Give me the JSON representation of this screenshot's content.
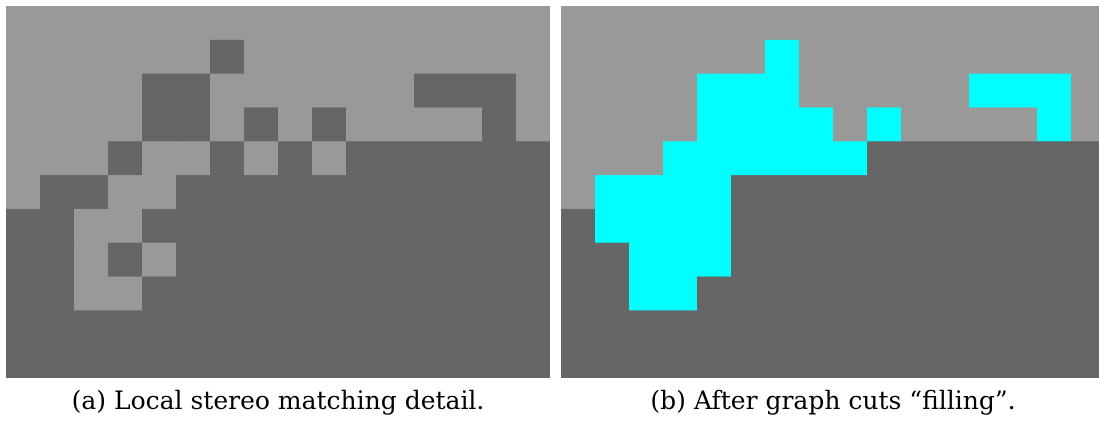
{
  "colors": {
    "light": "#999999",
    "dark": "#666666",
    "fill": "#00ffff"
  },
  "panels": [
    {
      "caption": "(a) Local stereo matching detail.",
      "grid": [
        "LLLLLLLLLLLLLLLL",
        "LLLLLLDLLLLLLLLL",
        "LLLLDDLLLLLLDDDL",
        "LLLLDDLDLDLLLLDL",
        "LLLDLLDLDLDDDDDD",
        "LDDLLDDDDDDDDDDD",
        "DDLLDDDDDDDDDDDD",
        "DDLDLDDDDDDDDDDD",
        "DDLLDDDDDDDDDDDD",
        "DDDDDDDDDDDDDDDD",
        "DDDDDDDDDDDDDDDD"
      ]
    },
    {
      "caption": "(b) After graph cuts “filling”.",
      "grid": [
        "LLLLLLLLLLLLLLLL",
        "LLLLLLCLLLLLLLLL",
        "LLLLCCCLLLLLCCCL",
        "LLLLCCCCLCLLLLCL",
        "LLLCCCCCCDDDDDDD",
        "LCCCCDDDDDDDDDDD",
        "DCCCCDDDDDDDDDDD",
        "DDCCCDDDDDDDDDDD",
        "DDCCDDDDDDDDDDDD",
        "DDDDDDDDDDDDDDDD",
        "DDDDDDDDDDDDDDDD"
      ]
    }
  ]
}
